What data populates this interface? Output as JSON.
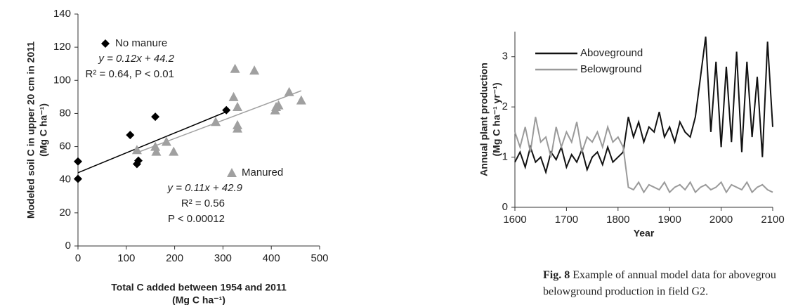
{
  "chart_data": [
    {
      "type": "scatter",
      "xlabel": [
        "Total C added between 1954 and 2011",
        "(Mg C ha⁻¹)"
      ],
      "ylabel": [
        "Modeled soil C in upper 20 cm in 2011",
        "(Mg C ha⁻¹)"
      ],
      "xlim": [
        0,
        500
      ],
      "xticks": [
        0,
        100,
        200,
        300,
        400,
        500
      ],
      "ylim": [
        0,
        140
      ],
      "yticks": [
        0,
        20,
        40,
        60,
        80,
        100,
        120,
        140
      ],
      "series": [
        {
          "name": "No manure",
          "color": "#000000",
          "marker": "diamond",
          "x": [
            0,
            0,
            108,
            122,
            125,
            160,
            307
          ],
          "values": [
            40.5,
            51,
            67,
            49.5,
            51.5,
            78,
            82
          ],
          "fit_x": [
            0,
            310
          ],
          "fit_y": [
            44.2,
            81.4
          ],
          "fit_text": [
            "y = 0.12x + 44.2",
            "R² = 0.64, P < 0.01"
          ]
        },
        {
          "name": "Manured",
          "color": "#a0a0a0",
          "marker": "triangle",
          "x": [
            122,
            160,
            162,
            183,
            198,
            285,
            322,
            325,
            330,
            330,
            330,
            365,
            408,
            410,
            415,
            437,
            462
          ],
          "values": [
            58,
            60,
            57,
            63,
            57,
            75,
            90,
            107,
            84,
            73,
            71,
            106,
            82,
            84,
            85,
            93,
            88
          ],
          "fit_x": [
            120,
            462
          ],
          "fit_y": [
            56.1,
            93.7
          ],
          "fit_text": [
            "y = 0.11x + 42.9",
            "R² = 0.56",
            "P < 0.00012"
          ]
        }
      ]
    },
    {
      "type": "line",
      "xlabel": "Year",
      "ylabel": [
        "Annual plant production",
        "(Mg C ha⁻¹ yr⁻¹)"
      ],
      "xlim": [
        1600,
        2100
      ],
      "xticks": [
        1600,
        1700,
        1800,
        1900,
        2000,
        2100
      ],
      "ylim": [
        0,
        3.5
      ],
      "yticks": [
        0,
        1,
        2,
        3
      ],
      "x": [
        1600,
        1610,
        1620,
        1630,
        1640,
        1650,
        1660,
        1670,
        1680,
        1690,
        1700,
        1710,
        1720,
        1730,
        1740,
        1750,
        1760,
        1770,
        1780,
        1790,
        1800,
        1810,
        1820,
        1830,
        1840,
        1850,
        1860,
        1870,
        1880,
        1890,
        1900,
        1910,
        1920,
        1930,
        1940,
        1950,
        1960,
        1970,
        1980,
        1990,
        2000,
        2010,
        2020,
        2030,
        2040,
        2050,
        2060,
        2070,
        2080,
        2090,
        2100
      ],
      "series": [
        {
          "name": "Aboveground",
          "color": "#111111",
          "values": [
            0.9,
            1.1,
            0.8,
            1.2,
            0.9,
            1.0,
            0.7,
            1.1,
            0.95,
            1.2,
            0.8,
            1.05,
            0.9,
            1.15,
            0.75,
            1.0,
            1.1,
            0.85,
            1.2,
            0.9,
            1.0,
            1.1,
            1.8,
            1.4,
            1.7,
            1.3,
            1.6,
            1.5,
            1.9,
            1.4,
            1.6,
            1.3,
            1.7,
            1.5,
            1.4,
            1.8,
            2.6,
            3.4,
            1.5,
            2.9,
            1.2,
            2.8,
            1.3,
            3.1,
            1.1,
            2.9,
            1.4,
            2.6,
            1.0,
            3.3,
            1.6
          ]
        },
        {
          "name": "Belowground",
          "color": "#9a9a9a",
          "values": [
            1.5,
            1.2,
            1.6,
            1.1,
            1.8,
            1.3,
            1.4,
            1.0,
            1.6,
            1.2,
            1.5,
            1.3,
            1.7,
            1.1,
            1.4,
            1.3,
            1.5,
            1.2,
            1.6,
            1.3,
            1.4,
            1.2,
            0.4,
            0.35,
            0.5,
            0.3,
            0.45,
            0.4,
            0.35,
            0.5,
            0.3,
            0.4,
            0.45,
            0.35,
            0.5,
            0.3,
            0.4,
            0.45,
            0.35,
            0.4,
            0.5,
            0.3,
            0.45,
            0.4,
            0.35,
            0.5,
            0.3,
            0.4,
            0.45,
            0.35,
            0.3
          ]
        }
      ]
    }
  ],
  "caption": {
    "label": "Fig. 8",
    "lines": [
      " Example of annual model data for abovegrou",
      "belowground production in field G2."
    ]
  }
}
